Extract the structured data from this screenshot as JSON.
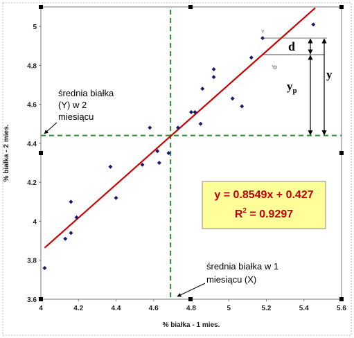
{
  "chart_data": {
    "type": "scatter",
    "xlabel": "% białka - 1 mies.",
    "ylabel": "% białka - 2 mies.",
    "xlim": [
      4,
      5.6
    ],
    "ylim": [
      3.6,
      5.1
    ],
    "x_ticks": [
      "4",
      "4.2",
      "4.4",
      "4.6",
      "4.8",
      "5",
      "5.2",
      "5.4",
      "5.6"
    ],
    "y_ticks": [
      "3.6",
      "3.8",
      "4",
      "4.2",
      "4.4",
      "4.6",
      "4.8",
      "5"
    ],
    "points": [
      {
        "x": 4.02,
        "y": 3.76
      },
      {
        "x": 4.13,
        "y": 3.91
      },
      {
        "x": 4.16,
        "y": 3.94
      },
      {
        "x": 4.16,
        "y": 4.1
      },
      {
        "x": 4.19,
        "y": 4.02
      },
      {
        "x": 4.37,
        "y": 4.28
      },
      {
        "x": 4.4,
        "y": 4.12
      },
      {
        "x": 4.54,
        "y": 4.29
      },
      {
        "x": 4.58,
        "y": 4.48
      },
      {
        "x": 4.62,
        "y": 4.36
      },
      {
        "x": 4.63,
        "y": 4.3
      },
      {
        "x": 4.68,
        "y": 4.35
      },
      {
        "x": 4.73,
        "y": 4.48
      },
      {
        "x": 4.8,
        "y": 4.56
      },
      {
        "x": 4.82,
        "y": 4.56
      },
      {
        "x": 4.85,
        "y": 4.5
      },
      {
        "x": 4.86,
        "y": 4.68
      },
      {
        "x": 4.92,
        "y": 4.74
      },
      {
        "x": 4.92,
        "y": 4.78
      },
      {
        "x": 5.02,
        "y": 4.63
      },
      {
        "x": 5.07,
        "y": 4.59
      },
      {
        "x": 5.12,
        "y": 4.84
      },
      {
        "x": 5.18,
        "y": 4.94
      },
      {
        "x": 5.45,
        "y": 5.01
      }
    ],
    "trendline": {
      "slope": 0.8549,
      "intercept": 0.427,
      "x_range": [
        4.02,
        5.46
      ],
      "color": "#cc0000"
    },
    "mean_x": 4.69,
    "mean_y": 4.44,
    "mean_line_color": "#2e8b2e",
    "point_color": "#1a1a6e",
    "highlight_x": 5.18,
    "yp_value": 4.855,
    "equation": "y = 0.8549x + 0.427",
    "r2_prefix": "R",
    "r2_sup": "2",
    "r2_suffix": " = 0.9297",
    "equation_box_fill": "#ffff99",
    "equation_color": "#c00000",
    "grid": false
  },
  "annotations": {
    "mean_y_lines": [
      "średnia białka",
      "(Y) w 2",
      "miesiącu"
    ],
    "mean_x_lines": [
      "średnia białka w 1",
      "miesiącu (X)"
    ],
    "d_label": "d",
    "y_label": "y",
    "yp_label_main": "y",
    "yp_label_sub": "p",
    "small_y": "Y",
    "small_yp": "Yp"
  }
}
